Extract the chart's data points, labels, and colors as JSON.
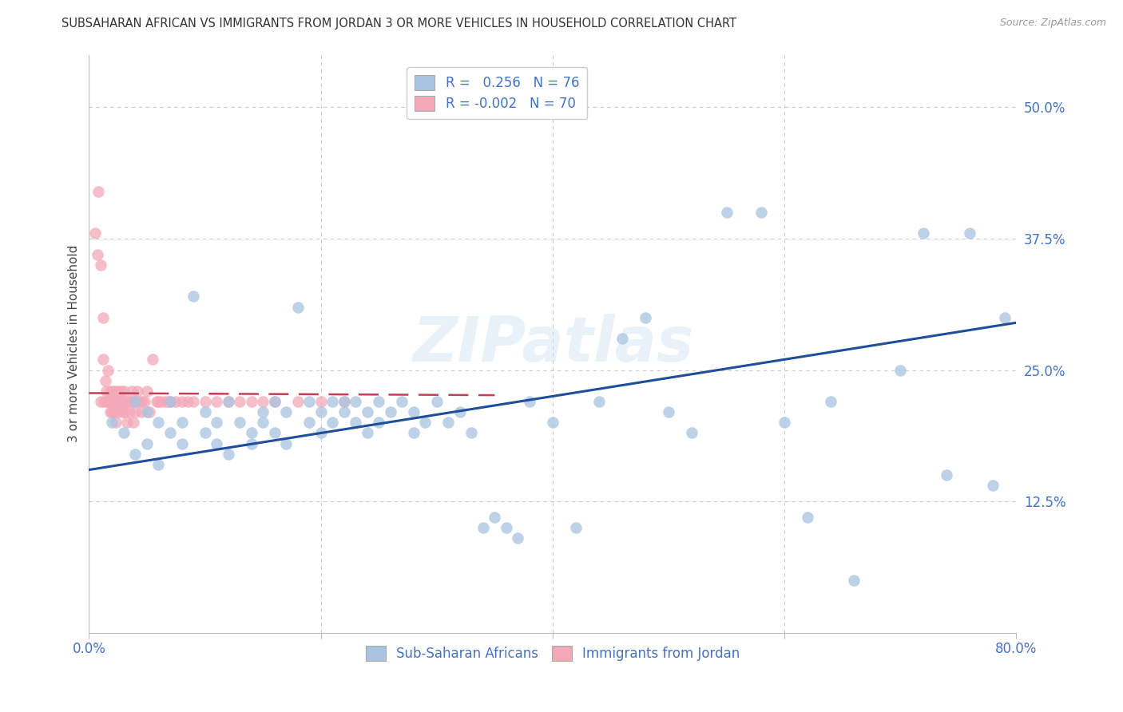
{
  "title": "SUBSAHARAN AFRICAN VS IMMIGRANTS FROM JORDAN 3 OR MORE VEHICLES IN HOUSEHOLD CORRELATION CHART",
  "source": "Source: ZipAtlas.com",
  "tick_color": "#4472C4",
  "ylabel": "3 or more Vehicles in Household",
  "xlim": [
    0.0,
    0.8
  ],
  "ylim": [
    0.0,
    0.55
  ],
  "xticks": [
    0.0,
    0.2,
    0.4,
    0.6,
    0.8
  ],
  "xticklabels": [
    "0.0%",
    "",
    "",
    "",
    "80.0%"
  ],
  "yticks_right": [
    0.0,
    0.125,
    0.25,
    0.375,
    0.5
  ],
  "yticklabels_right": [
    "",
    "12.5%",
    "25.0%",
    "37.5%",
    "50.0%"
  ],
  "blue_R": 0.256,
  "blue_N": 76,
  "pink_R": -0.002,
  "pink_N": 70,
  "blue_color": "#A8C4E0",
  "pink_color": "#F4A8B8",
  "blue_line_color": "#1F4E9A",
  "pink_line_color": "#C0405A",
  "grid_color": "#CCCCCC",
  "watermark": "ZIPatlas",
  "legend_label_blue": "Sub-Saharan Africans",
  "legend_label_pink": "Immigrants from Jordan",
  "blue_scatter_x": [
    0.02,
    0.03,
    0.04,
    0.04,
    0.05,
    0.05,
    0.06,
    0.06,
    0.07,
    0.07,
    0.08,
    0.08,
    0.09,
    0.1,
    0.1,
    0.11,
    0.11,
    0.12,
    0.12,
    0.13,
    0.14,
    0.14,
    0.15,
    0.15,
    0.16,
    0.16,
    0.17,
    0.17,
    0.18,
    0.19,
    0.19,
    0.2,
    0.2,
    0.21,
    0.21,
    0.22,
    0.22,
    0.23,
    0.23,
    0.24,
    0.24,
    0.25,
    0.25,
    0.26,
    0.27,
    0.28,
    0.28,
    0.29,
    0.3,
    0.31,
    0.32,
    0.33,
    0.34,
    0.35,
    0.36,
    0.37,
    0.38,
    0.4,
    0.42,
    0.44,
    0.46,
    0.48,
    0.5,
    0.52,
    0.55,
    0.58,
    0.6,
    0.62,
    0.64,
    0.66,
    0.7,
    0.72,
    0.74,
    0.76,
    0.78,
    0.79
  ],
  "blue_scatter_y": [
    0.2,
    0.19,
    0.17,
    0.22,
    0.18,
    0.21,
    0.16,
    0.2,
    0.19,
    0.22,
    0.18,
    0.2,
    0.32,
    0.19,
    0.21,
    0.2,
    0.18,
    0.22,
    0.17,
    0.2,
    0.19,
    0.18,
    0.21,
    0.2,
    0.22,
    0.19,
    0.21,
    0.18,
    0.31,
    0.2,
    0.22,
    0.21,
    0.19,
    0.22,
    0.2,
    0.22,
    0.21,
    0.22,
    0.2,
    0.21,
    0.19,
    0.22,
    0.2,
    0.21,
    0.22,
    0.19,
    0.21,
    0.2,
    0.22,
    0.2,
    0.21,
    0.19,
    0.1,
    0.11,
    0.1,
    0.09,
    0.22,
    0.2,
    0.1,
    0.22,
    0.28,
    0.3,
    0.21,
    0.19,
    0.4,
    0.4,
    0.2,
    0.11,
    0.22,
    0.05,
    0.25,
    0.38,
    0.15,
    0.38,
    0.14,
    0.3
  ],
  "pink_scatter_x": [
    0.005,
    0.007,
    0.008,
    0.01,
    0.01,
    0.012,
    0.012,
    0.013,
    0.014,
    0.015,
    0.015,
    0.016,
    0.017,
    0.018,
    0.018,
    0.019,
    0.02,
    0.02,
    0.021,
    0.022,
    0.022,
    0.023,
    0.023,
    0.024,
    0.025,
    0.025,
    0.026,
    0.027,
    0.028,
    0.029,
    0.03,
    0.03,
    0.031,
    0.032,
    0.033,
    0.034,
    0.035,
    0.036,
    0.037,
    0.038,
    0.04,
    0.04,
    0.042,
    0.043,
    0.045,
    0.046,
    0.048,
    0.05,
    0.052,
    0.055,
    0.058,
    0.06,
    0.062,
    0.065,
    0.068,
    0.07,
    0.075,
    0.08,
    0.085,
    0.09,
    0.1,
    0.11,
    0.12,
    0.13,
    0.14,
    0.15,
    0.16,
    0.18,
    0.2,
    0.22
  ],
  "pink_scatter_y": [
    0.38,
    0.36,
    0.42,
    0.22,
    0.35,
    0.3,
    0.26,
    0.22,
    0.24,
    0.22,
    0.23,
    0.25,
    0.22,
    0.21,
    0.23,
    0.22,
    0.22,
    0.21,
    0.23,
    0.22,
    0.21,
    0.22,
    0.2,
    0.23,
    0.22,
    0.21,
    0.22,
    0.23,
    0.22,
    0.21,
    0.22,
    0.23,
    0.21,
    0.22,
    0.2,
    0.22,
    0.21,
    0.22,
    0.23,
    0.2,
    0.22,
    0.21,
    0.23,
    0.22,
    0.21,
    0.22,
    0.22,
    0.23,
    0.21,
    0.26,
    0.22,
    0.22,
    0.22,
    0.22,
    0.22,
    0.22,
    0.22,
    0.22,
    0.22,
    0.22,
    0.22,
    0.22,
    0.22,
    0.22,
    0.22,
    0.22,
    0.22,
    0.22,
    0.22,
    0.22
  ],
  "blue_line_x": [
    0.0,
    0.8
  ],
  "blue_line_y": [
    0.155,
    0.295
  ],
  "pink_line_x": [
    0.0,
    0.35
  ],
  "pink_line_y": [
    0.228,
    0.226
  ]
}
